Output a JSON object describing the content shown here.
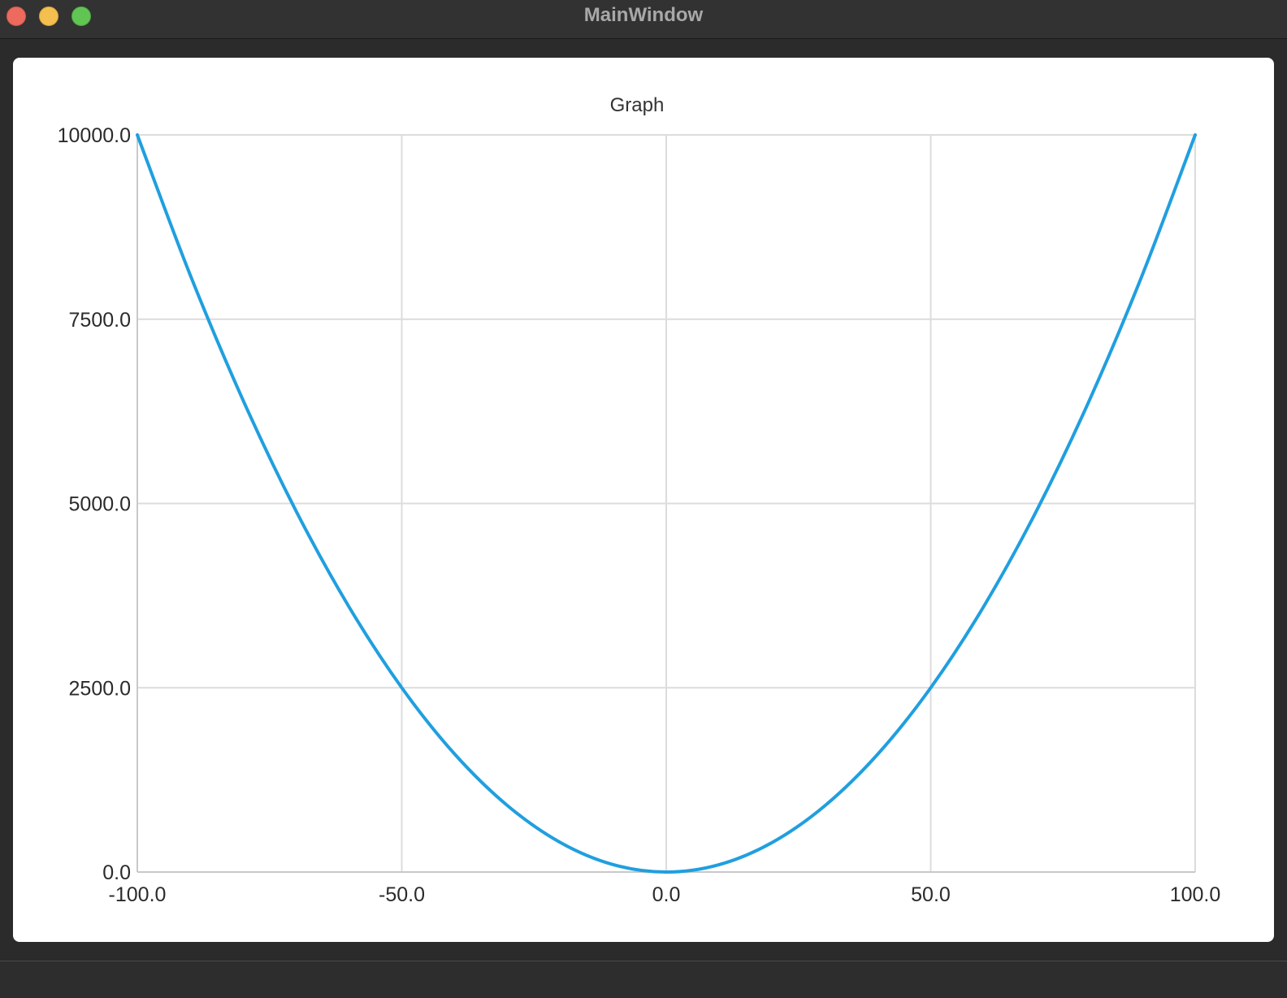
{
  "window": {
    "title": "MainWindow"
  },
  "colors": {
    "series": "#209fdf",
    "grid": "#dcdcdc",
    "axis": "#c8c8c8"
  },
  "chart_data": {
    "type": "line",
    "title": "Graph",
    "xlabel": "",
    "ylabel": "",
    "xlim": [
      -100,
      100
    ],
    "ylim": [
      0,
      10000
    ],
    "x_ticks": [
      "-100.0",
      "-50.0",
      "0.0",
      "50.0",
      "100.0"
    ],
    "y_ticks": [
      "0.0",
      "2500.0",
      "5000.0",
      "7500.0",
      "10000.0"
    ],
    "grid": true,
    "legend": "none",
    "series": [
      {
        "x": [
          -100,
          -90,
          -80,
          -70,
          -60,
          -50,
          -40,
          -30,
          -20,
          -10,
          0,
          10,
          20,
          30,
          40,
          50,
          60,
          70,
          80,
          90,
          100
        ],
        "y": [
          10000,
          8100,
          6400,
          4900,
          3600,
          2500,
          1600,
          900,
          400,
          100,
          0,
          100,
          400,
          900,
          1600,
          2500,
          3600,
          4900,
          6400,
          8100,
          10000
        ]
      }
    ]
  }
}
